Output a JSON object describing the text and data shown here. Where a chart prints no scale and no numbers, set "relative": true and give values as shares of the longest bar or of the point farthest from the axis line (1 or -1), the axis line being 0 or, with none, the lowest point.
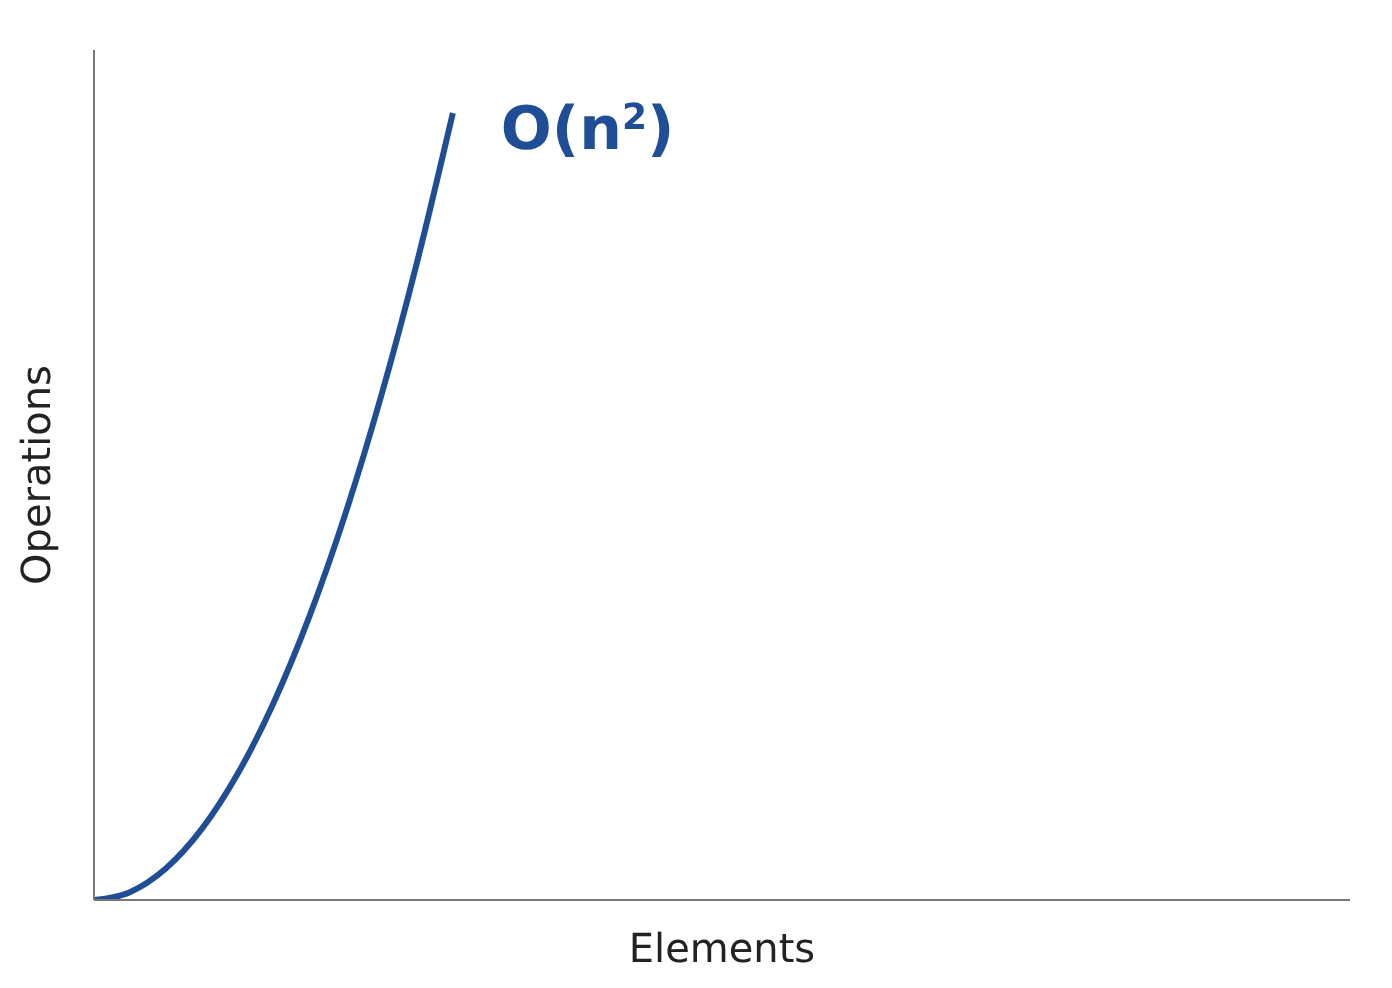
{
  "chart_data": {
    "type": "line",
    "relative": true,
    "xlabel": "Elements",
    "ylabel": "Operations",
    "grid": false,
    "legend": false,
    "marker": "none",
    "line_style": "solid",
    "categories": [
      null,
      null,
      null,
      null,
      null,
      null,
      null,
      null,
      null,
      null,
      null,
      null,
      null,
      null,
      null,
      null,
      null,
      null,
      null,
      null,
      null,
      null,
      null,
      null,
      null,
      null,
      null,
      null,
      null,
      null,
      null,
      null,
      null,
      null,
      null,
      null
    ],
    "series": [
      {
        "name": "O(n$^{2}$)",
        "color": "#1f4e96",
        "values": [
          0,
          0.01,
          0.04,
          0.09,
          0.16,
          0.25,
          0.36,
          0.49,
          0.64,
          0.81,
          1,
          null,
          null,
          null,
          null,
          null,
          null,
          null,
          null,
          null,
          null,
          null,
          null,
          null,
          null,
          null,
          null,
          null,
          null,
          null,
          null,
          null,
          null,
          null,
          null,
          null
        ]
      }
    ]
  }
}
